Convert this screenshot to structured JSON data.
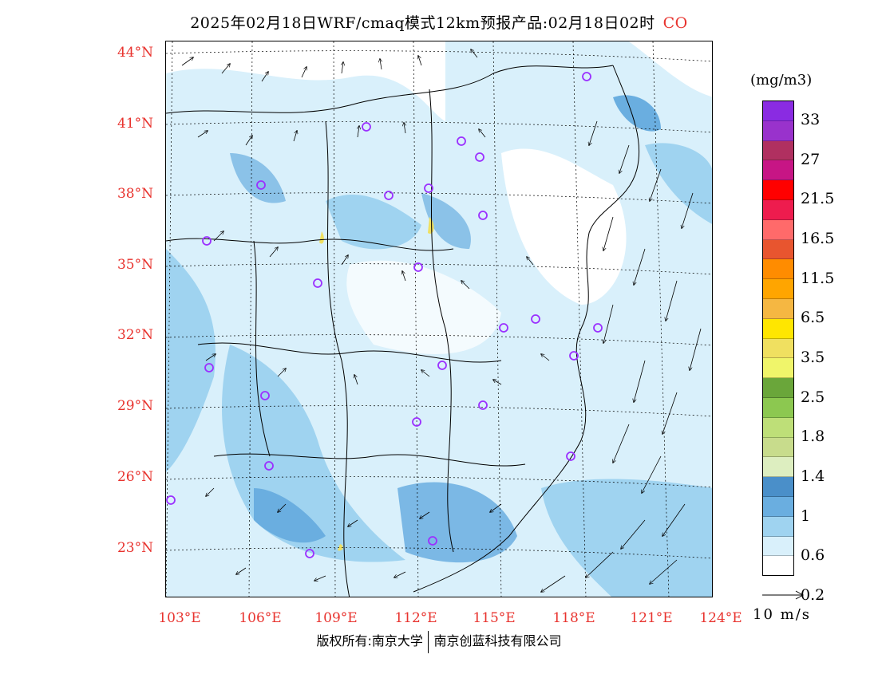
{
  "title": {
    "text": "2025年02月18日WRF/cmaq模式12km预报产品:02月18日02时",
    "species": "CO"
  },
  "axes": {
    "lat_labels": [
      "44°N",
      "41°N",
      "38°N",
      "35°N",
      "32°N",
      "29°N",
      "26°N",
      "23°N"
    ],
    "lon_labels": [
      "103°E",
      "106°E",
      "109°E",
      "112°E",
      "115°E",
      "118°E",
      "121°E",
      "124°E"
    ]
  },
  "legend": {
    "unit": "(mg/m3)",
    "ticks": [
      "33",
      "27",
      "21.5",
      "16.5",
      "11.5",
      "6.5",
      "3.5",
      "2.5",
      "1.8",
      "1.4",
      "1",
      "0.6",
      "0.2"
    ],
    "colors": [
      "#8a2be2",
      "#9932cc",
      "#b03060",
      "#c71585",
      "#ff0000",
      "#ee1c4e",
      "#ff6a6a",
      "#e8552f",
      "#ff8c00",
      "#ffa500",
      "#f5b742",
      "#ffe600",
      "#f0e060",
      "#f0f56a",
      "#6aa63a",
      "#8cc850",
      "#bedf78",
      "#c8dc8c",
      "#ddeec0",
      "#4a8fc9",
      "#6aaee0",
      "#9fd3f0",
      "#d9f0fb",
      "#ffffff"
    ]
  },
  "reference_vector": {
    "label": "10 m/s"
  },
  "copyright": {
    "left": "版权所有:南京大学",
    "right": "南京创蓝科技有限公司"
  },
  "colors": {
    "label_red": "#e8332e",
    "site_marker": "#9b30ff"
  }
}
